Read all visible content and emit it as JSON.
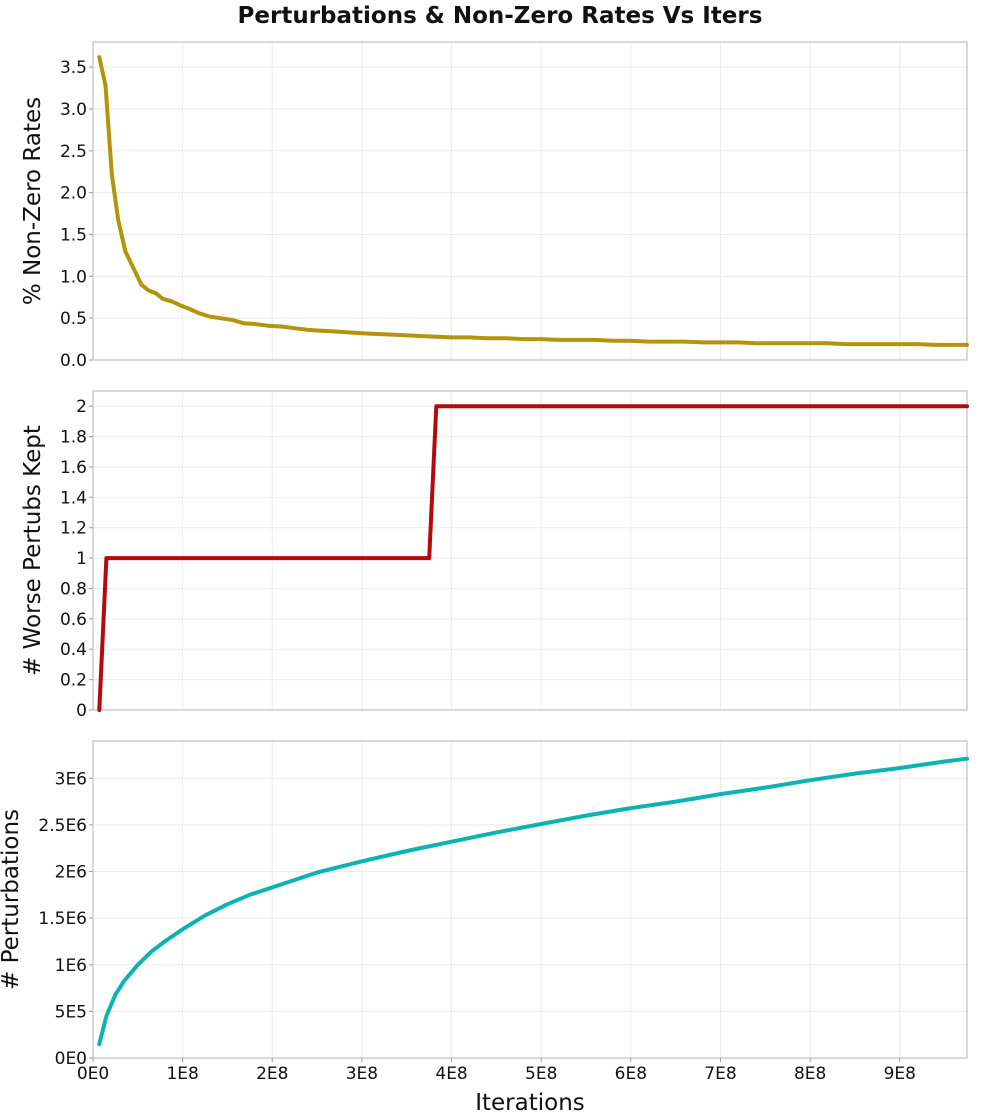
{
  "title": "Perturbations & Non-Zero Rates Vs Iters",
  "colors": {
    "nonzero": "#b5930b",
    "worse": "#b30b0b",
    "perturbations": "#0bb3b3",
    "grid": "#ebebeb",
    "frame": "#b3b3b3"
  },
  "chart_data": [
    {
      "type": "line",
      "ylabel": "% Non-Zero Rates",
      "grid": true,
      "xlim": [
        0,
        975000000
      ],
      "ylim": [
        0,
        3.8
      ],
      "yticks": [
        0,
        0.5,
        1.0,
        1.5,
        2.0,
        2.5,
        3.0,
        3.5
      ],
      "yticklabels": [
        "0.0",
        "0.5",
        "1.0",
        "1.5",
        "2.0",
        "2.5",
        "3.0",
        "3.5"
      ],
      "series": [
        {
          "color_key": "nonzero",
          "x": [
            7000000,
            14000000,
            21000000,
            28000000,
            36000000,
            45000000,
            54000000,
            62000000,
            70000000,
            78000000,
            88000000,
            98000000,
            108000000,
            118000000,
            130000000,
            142000000,
            155000000,
            168000000,
            180000000,
            195000000,
            210000000,
            225000000,
            240000000,
            255000000,
            270000000,
            285000000,
            300000000,
            320000000,
            340000000,
            360000000,
            380000000,
            400000000,
            420000000,
            440000000,
            460000000,
            480000000,
            500000000,
            520000000,
            540000000,
            560000000,
            580000000,
            600000000,
            620000000,
            640000000,
            660000000,
            680000000,
            700000000,
            720000000,
            740000000,
            760000000,
            780000000,
            800000000,
            820000000,
            840000000,
            860000000,
            880000000,
            900000000,
            920000000,
            940000000,
            960000000,
            975000000
          ],
          "y": [
            3.62,
            3.28,
            2.22,
            1.68,
            1.3,
            1.1,
            0.9,
            0.83,
            0.8,
            0.73,
            0.7,
            0.65,
            0.61,
            0.56,
            0.52,
            0.5,
            0.48,
            0.44,
            0.43,
            0.41,
            0.4,
            0.38,
            0.36,
            0.35,
            0.34,
            0.33,
            0.32,
            0.31,
            0.3,
            0.29,
            0.28,
            0.27,
            0.27,
            0.26,
            0.26,
            0.25,
            0.25,
            0.24,
            0.24,
            0.24,
            0.23,
            0.23,
            0.22,
            0.22,
            0.22,
            0.21,
            0.21,
            0.21,
            0.2,
            0.2,
            0.2,
            0.2,
            0.2,
            0.19,
            0.19,
            0.19,
            0.19,
            0.19,
            0.18,
            0.18,
            0.18
          ]
        }
      ]
    },
    {
      "type": "line",
      "ylabel": "# Worse Pertubs Kept",
      "grid": true,
      "xlim": [
        0,
        975000000
      ],
      "ylim": [
        0,
        2.1
      ],
      "yticks": [
        0,
        0.2,
        0.4,
        0.6,
        0.8,
        1,
        1.2,
        1.4,
        1.6,
        1.8,
        2
      ],
      "yticklabels": [
        "0",
        "0.2",
        "0.4",
        "0.6",
        "0.8",
        "1",
        "1.2",
        "1.4",
        "1.6",
        "1.8",
        "2"
      ],
      "series": [
        {
          "color_key": "worse",
          "x": [
            7000000,
            15000000,
            375000000,
            383000000,
            975000000
          ],
          "y": [
            0,
            1,
            1,
            2,
            2
          ]
        }
      ]
    },
    {
      "type": "line",
      "ylabel": "# Perturbations",
      "xlabel": "Iterations",
      "grid": true,
      "xlim": [
        0,
        975000000
      ],
      "ylim": [
        0,
        3400000
      ],
      "yticks": [
        0,
        500000,
        1000000,
        1500000,
        2000000,
        2500000,
        3000000
      ],
      "yticklabels": [
        "0E0",
        "5E5",
        "1E6",
        "1.5E6",
        "2E6",
        "2.5E6",
        "3E6"
      ],
      "xticks": [
        0,
        100000000,
        200000000,
        300000000,
        400000000,
        500000000,
        600000000,
        700000000,
        800000000,
        900000000
      ],
      "xticklabels": [
        "0E0",
        "1E8",
        "2E8",
        "3E8",
        "4E8",
        "5E8",
        "6E8",
        "7E8",
        "8E8",
        "9E8"
      ],
      "series": [
        {
          "color_key": "perturbations",
          "x": [
            7000000,
            15000000,
            25000000,
            35000000,
            50000000,
            65000000,
            80000000,
            100000000,
            125000000,
            150000000,
            175000000,
            200000000,
            250000000,
            300000000,
            350000000,
            400000000,
            450000000,
            500000000,
            550000000,
            600000000,
            650000000,
            700000000,
            750000000,
            800000000,
            850000000,
            900000000,
            950000000,
            975000000
          ],
          "y": [
            150000,
            450000,
            680000,
            830000,
            1000000,
            1140000,
            1250000,
            1380000,
            1530000,
            1650000,
            1750000,
            1830000,
            1990000,
            2110000,
            2220000,
            2320000,
            2420000,
            2510000,
            2600000,
            2680000,
            2750000,
            2830000,
            2900000,
            2980000,
            3050000,
            3110000,
            3180000,
            3210000
          ]
        }
      ]
    }
  ]
}
